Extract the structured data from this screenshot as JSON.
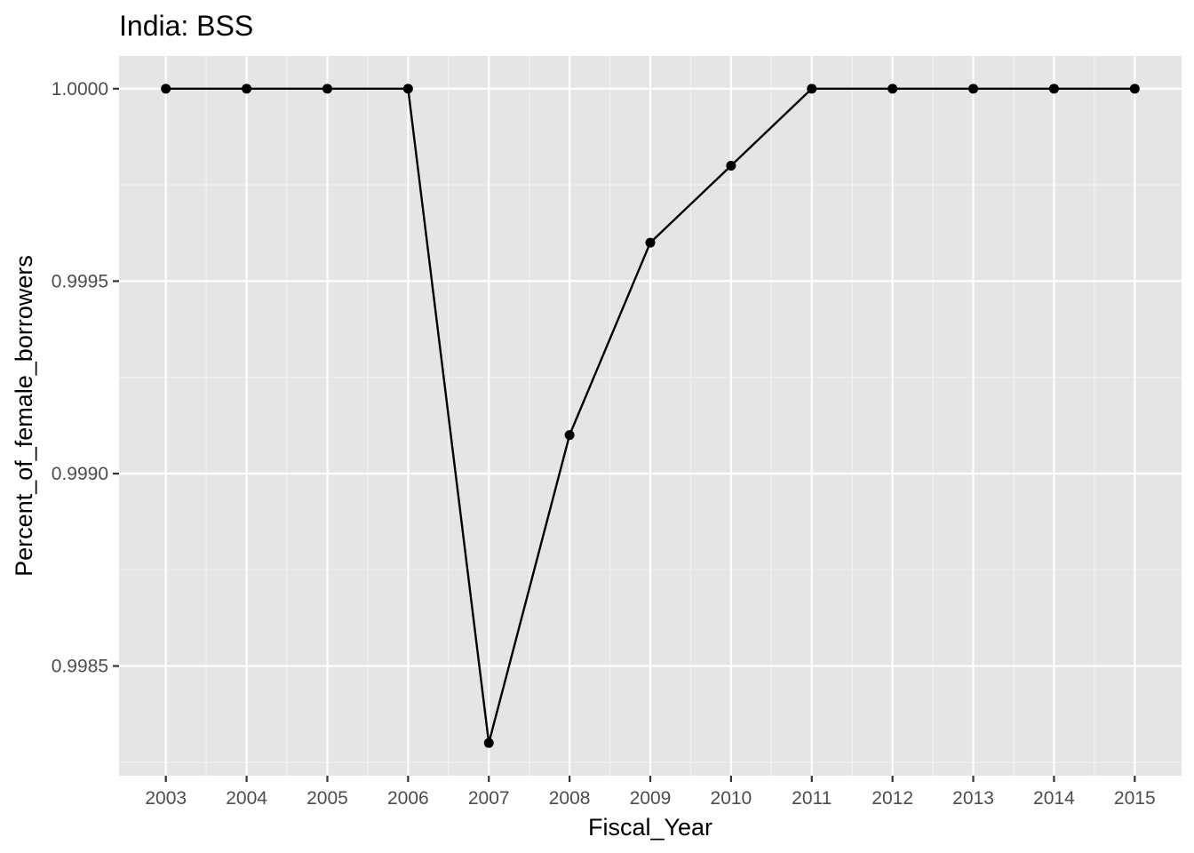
{
  "chart_data": {
    "type": "line",
    "title": "India:  BSS",
    "xlabel": "Fiscal_Year",
    "ylabel": "Percent_of_female_borrowers",
    "x": [
      2003,
      2004,
      2005,
      2006,
      2007,
      2008,
      2009,
      2010,
      2011,
      2012,
      2013,
      2014,
      2015
    ],
    "series": [
      {
        "values": [
          1.0,
          1.0,
          1.0,
          1.0,
          0.9983,
          0.9991,
          0.9996,
          0.9998,
          1.0,
          1.0,
          1.0,
          1.0,
          1.0
        ],
        "color": "#000000"
      }
    ],
    "xlim": [
      2002.42,
      2015.58
    ],
    "ylim": [
      0.998215,
      1.000085
    ],
    "x_ticks": [
      "2003",
      "2004",
      "2005",
      "2006",
      "2007",
      "2008",
      "2009",
      "2010",
      "2011",
      "2012",
      "2013",
      "2014",
      "2015"
    ],
    "y_ticks": [
      "0.9985",
      "0.9990",
      "0.9995",
      "1.0000"
    ],
    "grid": true,
    "legend": "none",
    "panel_color": "#e5e5e5"
  }
}
